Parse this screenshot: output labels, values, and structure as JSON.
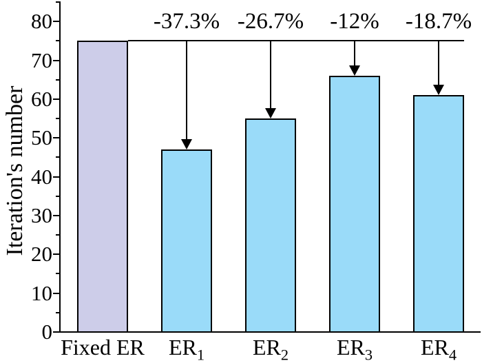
{
  "figure": {
    "background_color": "#ffffff",
    "text_color": "#000000"
  },
  "chart_data": {
    "type": "bar",
    "title": "",
    "xlabel": "",
    "ylabel": "Iteration's number",
    "categories": [
      {
        "label": "Fixed ER",
        "sub": ""
      },
      {
        "label": "ER",
        "sub": "1"
      },
      {
        "label": "ER",
        "sub": "2"
      },
      {
        "label": "ER",
        "sub": "3"
      },
      {
        "label": "ER",
        "sub": "4"
      }
    ],
    "values": [
      75,
      47,
      55,
      66,
      61
    ],
    "bar_colors": [
      "#cdcde9",
      "#9adbf9",
      "#9adbf9",
      "#9adbf9",
      "#9adbf9"
    ],
    "bar_edge_color": "#000000",
    "ylim": [
      0,
      85
    ],
    "yticks": [
      0,
      10,
      20,
      30,
      40,
      50,
      60,
      70,
      80
    ],
    "yticks_minor": [
      5,
      15,
      25,
      35,
      45,
      55,
      65,
      75,
      85
    ],
    "grid": false,
    "legend": "none",
    "reference_line": {
      "value": 75,
      "color": "#000000"
    },
    "annotations": [
      {
        "target_index": 1,
        "text": "-37.3%"
      },
      {
        "target_index": 2,
        "text": "-26.7%"
      },
      {
        "target_index": 3,
        "text": "-12%"
      },
      {
        "target_index": 4,
        "text": "-18.7%"
      }
    ]
  }
}
